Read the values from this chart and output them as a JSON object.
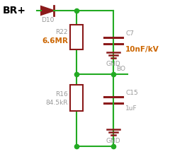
{
  "bg_color": "#ffffff",
  "wire_color": "#22aa22",
  "component_color": "#8b1a1a",
  "label_color": "#999999",
  "bold_label_color": "#cc6600",
  "br_color": "#000000",
  "title": "BR+",
  "diode_label": "D10",
  "r22_label": "R22",
  "r22_value": "6.6MR",
  "r16_label": "R16",
  "r16_value": "84.5kR",
  "c7_label": "C7",
  "c7_value": "10nF/kV",
  "c15_label": "C15",
  "c15_value": "1uF",
  "bo_label": "BO",
  "gnd1_label": "GND",
  "gnd2_label": "GND",
  "figsize": [
    2.64,
    2.26
  ],
  "dpi": 100
}
